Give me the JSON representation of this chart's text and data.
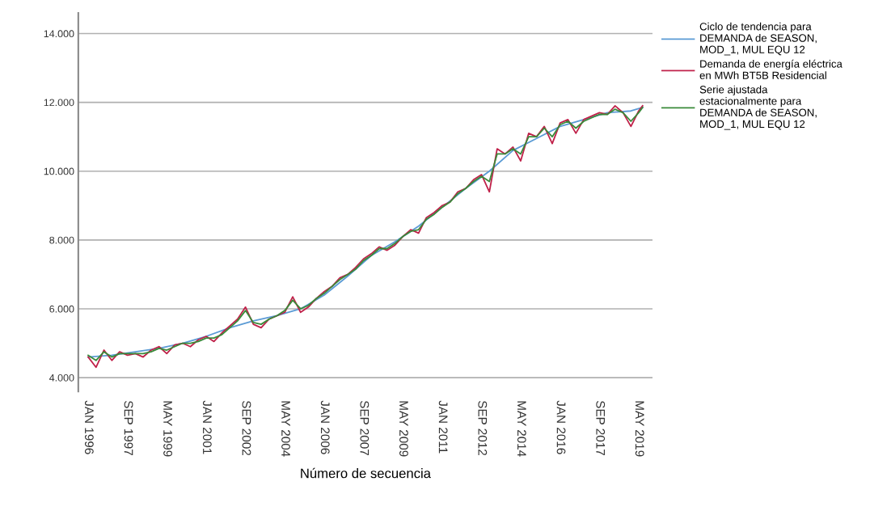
{
  "chart_data": {
    "type": "line",
    "xlabel": "Número de secuencia",
    "x": [
      "1996-01",
      "1996-05",
      "1996-09",
      "1997-01",
      "1997-05",
      "1997-09",
      "1998-01",
      "1998-05",
      "1998-09",
      "1999-01",
      "1999-05",
      "1999-09",
      "2000-01",
      "2000-05",
      "2000-09",
      "2001-01",
      "2001-05",
      "2001-09",
      "2002-01",
      "2002-05",
      "2002-09",
      "2003-01",
      "2003-05",
      "2003-09",
      "2004-01",
      "2004-05",
      "2004-09",
      "2005-01",
      "2005-05",
      "2005-09",
      "2006-01",
      "2006-05",
      "2006-09",
      "2007-01",
      "2007-05",
      "2007-09",
      "2008-01",
      "2008-05",
      "2008-09",
      "2009-01",
      "2009-05",
      "2009-09",
      "2010-01",
      "2010-05",
      "2010-09",
      "2011-01",
      "2011-05",
      "2011-09",
      "2012-01",
      "2012-05",
      "2012-09",
      "2013-01",
      "2013-05",
      "2013-09",
      "2014-01",
      "2014-05",
      "2014-09",
      "2015-01",
      "2015-05",
      "2015-09",
      "2016-01",
      "2016-05",
      "2016-09",
      "2017-01",
      "2017-05",
      "2017-09",
      "2018-01",
      "2018-05",
      "2018-09",
      "2019-01",
      "2019-05",
      "2019-07"
    ],
    "series": [
      {
        "name": "Ciclo de tendencia para\nDEMANDA de SEASON,\nMOD_1, MUL EQU 12",
        "color": "#5b9bd5",
        "x": [
          "1996-01",
          "1997-01",
          "1998-01",
          "1999-01",
          "2000-01",
          "2001-01",
          "2002-01",
          "2003-01",
          "2004-01",
          "2005-01",
          "2006-01",
          "2007-01",
          "2008-01",
          "2009-01",
          "2010-01",
          "2011-01",
          "2012-01",
          "2013-01",
          "2014-01",
          "2015-01",
          "2016-01",
          "2017-01",
          "2018-01",
          "2019-01",
          "2019-07"
        ],
        "values": [
          4600,
          4650,
          4750,
          4850,
          5000,
          5200,
          5450,
          5650,
          5800,
          6000,
          6400,
          6950,
          7550,
          7950,
          8400,
          8950,
          9500,
          10000,
          10600,
          10950,
          11300,
          11500,
          11700,
          11750,
          11850
        ]
      },
      {
        "name": "Demanda de energía eléctrica\nen MWh BT5B Residencial",
        "color": "#c0224a",
        "values": [
          4600,
          4300,
          4800,
          4500,
          4750,
          4650,
          4700,
          4600,
          4800,
          4900,
          4700,
          4950,
          5000,
          4900,
          5100,
          5200,
          5050,
          5300,
          5500,
          5700,
          6050,
          5550,
          5450,
          5700,
          5800,
          5900,
          6350,
          5900,
          6050,
          6300,
          6500,
          6650,
          6900,
          7000,
          7200,
          7450,
          7600,
          7800,
          7700,
          7850,
          8100,
          8300,
          8200,
          8650,
          8800,
          9000,
          9100,
          9400,
          9500,
          9750,
          9900,
          9400,
          10650,
          10500,
          10700,
          10300,
          11100,
          11000,
          11300,
          10800,
          11400,
          11500,
          11100,
          11500,
          11600,
          11700,
          11650,
          11900,
          11700,
          11300,
          11750,
          11900
        ]
      },
      {
        "name": "Serie ajustada\nestacionalmente para\nDEMANDA de SEASON,\nMOD_1, MUL EQU 12",
        "color": "#3a8a3a",
        "values": [
          4650,
          4500,
          4750,
          4600,
          4700,
          4700,
          4700,
          4700,
          4750,
          4850,
          4800,
          4900,
          5000,
          5000,
          5050,
          5150,
          5150,
          5250,
          5450,
          5650,
          5950,
          5600,
          5550,
          5700,
          5800,
          5950,
          6250,
          6000,
          6100,
          6300,
          6450,
          6650,
          6850,
          7000,
          7150,
          7400,
          7550,
          7750,
          7750,
          7900,
          8100,
          8250,
          8300,
          8600,
          8750,
          8950,
          9100,
          9350,
          9500,
          9700,
          9850,
          9700,
          10500,
          10500,
          10650,
          10500,
          11000,
          11000,
          11250,
          11000,
          11350,
          11450,
          11250,
          11450,
          11550,
          11650,
          11650,
          11800,
          11700,
          11450,
          11700,
          11850
        ]
      }
    ],
    "xlim": [
      "1995-08",
      "2019-12"
    ],
    "xticks": [
      {
        "value": "1996-01",
        "label": "JAN 1996"
      },
      {
        "value": "1997-09",
        "label": "SEP 1997"
      },
      {
        "value": "1999-05",
        "label": "MAY 1999"
      },
      {
        "value": "2001-01",
        "label": "JAN 2001"
      },
      {
        "value": "2002-09",
        "label": "SEP 2002"
      },
      {
        "value": "2004-05",
        "label": "MAY 2004"
      },
      {
        "value": "2006-01",
        "label": "JAN 2006"
      },
      {
        "value": "2007-09",
        "label": "SEP 2007"
      },
      {
        "value": "2009-05",
        "label": "MAY 2009"
      },
      {
        "value": "2011-01",
        "label": "JAN 2011"
      },
      {
        "value": "2012-09",
        "label": "SEP 2012"
      },
      {
        "value": "2014-05",
        "label": "MAY 2014"
      },
      {
        "value": "2016-01",
        "label": "JAN 2016"
      },
      {
        "value": "2017-09",
        "label": "SEP 2017"
      },
      {
        "value": "2019-05",
        "label": "MAY 2019"
      }
    ],
    "ylim": [
      3600,
      14600
    ],
    "yticks": [
      {
        "value": 4000,
        "label": "4.000"
      },
      {
        "value": 6000,
        "label": "6.000"
      },
      {
        "value": 8000,
        "label": "8.000"
      },
      {
        "value": 10000,
        "label": "10.000"
      },
      {
        "value": 12000,
        "label": "12.000"
      },
      {
        "value": 14000,
        "label": "14.000"
      }
    ],
    "grid": "y",
    "legend": "top right",
    "marker": "none",
    "line_style": "solid"
  }
}
